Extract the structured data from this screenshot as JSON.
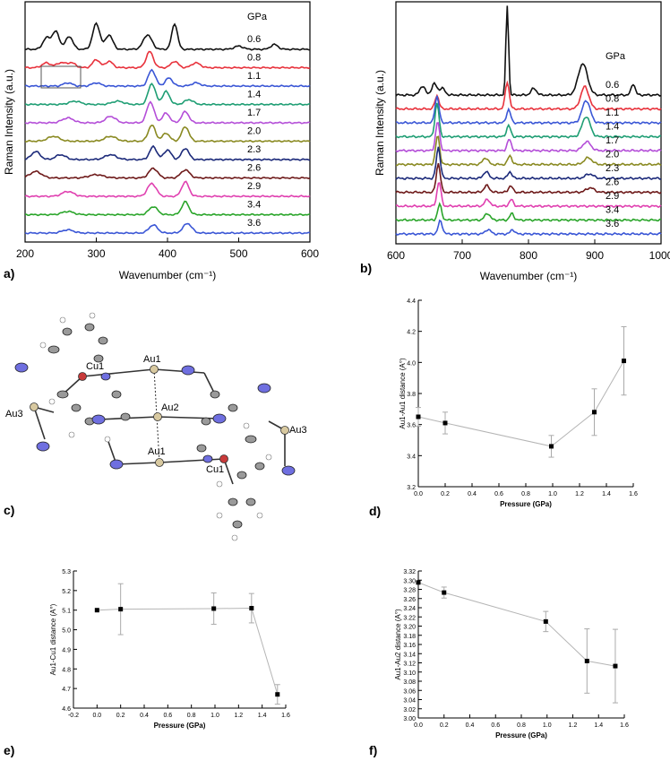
{
  "chart_data": [
    {
      "id": "a",
      "panel_label": "a)",
      "type": "line",
      "title": "",
      "xlabel": "Wavenumber (cm⁻¹)",
      "ylabel": "Raman Intensity (a.u.)",
      "xlim": [
        200,
        600
      ],
      "xticks": [
        "200",
        "300",
        "400",
        "500",
        "600"
      ],
      "legend_title": "GPa",
      "series": [
        {
          "name": "0.6",
          "color": "#111111",
          "peaks": [
            [
              230,
              0.7,
              5
            ],
            [
              243,
              1.1,
              5
            ],
            [
              262,
              0.8,
              5
            ],
            [
              300,
              1.6,
              5
            ],
            [
              318,
              0.9,
              5
            ],
            [
              372,
              0.9,
              6
            ],
            [
              410,
              1.6,
              4
            ],
            [
              500,
              0.2,
              6
            ],
            [
              550,
              0.3,
              5
            ]
          ]
        },
        {
          "name": "0.8",
          "color": "#e8323c",
          "peaks": [
            [
              230,
              0.3,
              6
            ],
            [
              250,
              0.3,
              6
            ],
            [
              265,
              0.3,
              6
            ],
            [
              300,
              0.5,
              5
            ],
            [
              318,
              0.4,
              5
            ],
            [
              375,
              1.0,
              5
            ],
            [
              410,
              0.4,
              5
            ],
            [
              440,
              0.3,
              6
            ]
          ]
        },
        {
          "name": "1.1",
          "color": "#3b57d6",
          "peaks": [
            [
              260,
              0.2,
              6
            ],
            [
              300,
              0.2,
              6
            ],
            [
              378,
              1.0,
              5
            ],
            [
              402,
              0.5,
              5
            ],
            [
              440,
              0.2,
              6
            ]
          ]
        },
        {
          "name": "1.4",
          "color": "#1f9e74",
          "peaks": [
            [
              270,
              0.2,
              8
            ],
            [
              330,
              0.2,
              8
            ],
            [
              378,
              1.3,
              5
            ],
            [
              398,
              0.8,
              5
            ],
            [
              430,
              0.3,
              6
            ]
          ]
        },
        {
          "name": "1.7",
          "color": "#b44ed8",
          "peaks": [
            [
              260,
              0.3,
              8
            ],
            [
              320,
              0.4,
              7
            ],
            [
              376,
              1.3,
              5
            ],
            [
              398,
              0.6,
              5
            ],
            [
              425,
              0.7,
              5
            ]
          ]
        },
        {
          "name": "2.0",
          "color": "#8a8a22",
          "peaks": [
            [
              240,
              0.3,
              8
            ],
            [
              320,
              0.3,
              8
            ],
            [
              378,
              1.0,
              5
            ],
            [
              398,
              0.5,
              5
            ],
            [
              425,
              0.9,
              5
            ]
          ]
        },
        {
          "name": "2.3",
          "color": "#1c2a7a",
          "peaks": [
            [
              215,
              0.5,
              6
            ],
            [
              250,
              0.3,
              7
            ],
            [
              320,
              0.3,
              8
            ],
            [
              380,
              0.8,
              5
            ],
            [
              400,
              0.6,
              5
            ],
            [
              425,
              0.7,
              5
            ]
          ]
        },
        {
          "name": "2.6",
          "color": "#6e1a1a",
          "peaks": [
            [
              215,
              0.4,
              8
            ],
            [
              300,
              0.2,
              10
            ],
            [
              380,
              0.6,
              6
            ],
            [
              425,
              0.5,
              6
            ]
          ]
        },
        {
          "name": "2.9",
          "color": "#e040b0",
          "peaks": [
            [
              260,
              0.3,
              8
            ],
            [
              378,
              0.8,
              6
            ],
            [
              425,
              0.9,
              5
            ]
          ]
        },
        {
          "name": "3.4",
          "color": "#2aa52a",
          "peaks": [
            [
              260,
              0.2,
              8
            ],
            [
              380,
              0.5,
              6
            ],
            [
              425,
              0.8,
              5
            ]
          ]
        },
        {
          "name": "3.6",
          "color": "#3b57d6",
          "peaks": [
            [
              260,
              0.2,
              8
            ],
            [
              380,
              0.5,
              6
            ],
            [
              428,
              0.6,
              6
            ]
          ]
        }
      ]
    },
    {
      "id": "b",
      "panel_label": "b)",
      "type": "line",
      "title": "",
      "xlabel": "Wavenumber (cm⁻¹)",
      "ylabel": "Raman Intensity (a.u.)",
      "xlim": [
        600,
        1000
      ],
      "xticks": [
        "600",
        "700",
        "800",
        "900",
        "1000"
      ],
      "legend_title": "GPa",
      "series": [
        {
          "name": "0.6",
          "color": "#111111",
          "peaks": [
            [
              640,
              0.4,
              4
            ],
            [
              658,
              0.5,
              4
            ],
            [
              670,
              0.3,
              4
            ],
            [
              768,
              4.0,
              2
            ],
            [
              808,
              0.3,
              4
            ],
            [
              882,
              1.4,
              7
            ],
            [
              958,
              0.5,
              3
            ]
          ]
        },
        {
          "name": "0.8",
          "color": "#e8323c",
          "peaks": [
            [
              662,
              0.6,
              3
            ],
            [
              768,
              1.2,
              3
            ],
            [
              885,
              1.0,
              6
            ]
          ]
        },
        {
          "name": "1.1",
          "color": "#3b57d6",
          "peaks": [
            [
              662,
              1.2,
              3
            ],
            [
              770,
              0.6,
              3
            ],
            [
              887,
              1.0,
              6
            ]
          ]
        },
        {
          "name": "1.4",
          "color": "#1f9e74",
          "peaks": [
            [
              662,
              1.5,
              3
            ],
            [
              770,
              0.5,
              3
            ],
            [
              887,
              0.9,
              6
            ]
          ]
        },
        {
          "name": "1.7",
          "color": "#b44ed8",
          "peaks": [
            [
              663,
              1.3,
              3
            ],
            [
              771,
              0.5,
              3
            ],
            [
              888,
              0.4,
              6
            ]
          ]
        },
        {
          "name": "2.0",
          "color": "#8a8a22",
          "peaks": [
            [
              663,
              1.3,
              3
            ],
            [
              735,
              0.3,
              4
            ],
            [
              772,
              0.4,
              3
            ],
            [
              890,
              0.3,
              6
            ]
          ]
        },
        {
          "name": "2.3",
          "color": "#1c2a7a",
          "peaks": [
            [
              664,
              1.4,
              3
            ],
            [
              736,
              0.3,
              4
            ],
            [
              772,
              0.3,
              3
            ],
            [
              892,
              0.2,
              6
            ]
          ]
        },
        {
          "name": "2.6",
          "color": "#6e1a1a",
          "peaks": [
            [
              664,
              1.3,
              3
            ],
            [
              737,
              0.3,
              4
            ],
            [
              773,
              0.3,
              3
            ],
            [
              893,
              0.2,
              6
            ]
          ]
        },
        {
          "name": "2.9",
          "color": "#e040b0",
          "peaks": [
            [
              665,
              1.1,
              3
            ],
            [
              738,
              0.3,
              4
            ],
            [
              774,
              0.3,
              3
            ]
          ]
        },
        {
          "name": "3.4",
          "color": "#2aa52a",
          "peaks": [
            [
              666,
              0.7,
              3
            ],
            [
              738,
              0.3,
              4
            ],
            [
              775,
              0.3,
              3
            ]
          ]
        },
        {
          "name": "3.6",
          "color": "#3b57d6",
          "peaks": [
            [
              667,
              0.6,
              3
            ],
            [
              739,
              0.2,
              4
            ],
            [
              776,
              0.2,
              3
            ]
          ]
        }
      ]
    },
    {
      "id": "d",
      "panel_label": "d)",
      "type": "scatter",
      "title": "",
      "xlabel": "Pressure (GPa)",
      "ylabel": "Au1-Au1 distance (A°)",
      "xlim": [
        0,
        1.6
      ],
      "ylim": [
        3.2,
        4.4
      ],
      "xticks": [
        "0.0",
        "0.2",
        "0.4",
        "0.6",
        "0.8",
        "1.0",
        "1.2",
        "1.4",
        "1.6"
      ],
      "yticks": [
        "3.2",
        "3.4",
        "3.6",
        "3.8",
        "4.0",
        "4.2",
        "4.4"
      ],
      "x": [
        0.0,
        0.2,
        0.99,
        1.31,
        1.53
      ],
      "y": [
        3.65,
        3.61,
        3.46,
        3.68,
        4.01
      ],
      "err": [
        0.06,
        0.07,
        0.07,
        0.15,
        0.22
      ]
    },
    {
      "id": "e",
      "panel_label": "e)",
      "type": "scatter",
      "title": "",
      "xlabel": "Pressure (GPa)",
      "ylabel": "Au1-Cu1 distance (A°)",
      "xlim": [
        -0.2,
        1.6
      ],
      "ylim": [
        4.6,
        5.3
      ],
      "xticks": [
        "-0.2",
        "0.0",
        "0.2",
        "0.4",
        "0.6",
        "0.8",
        "1.0",
        "1.2",
        "1.4",
        "1.6"
      ],
      "yticks": [
        "4.6",
        "4.7",
        "4.8",
        "4.9",
        "5.0",
        "5.1",
        "5.2",
        "5.3"
      ],
      "x": [
        0.0,
        0.2,
        0.99,
        1.31,
        1.53
      ],
      "y": [
        5.1,
        5.105,
        5.108,
        5.11,
        4.67
      ],
      "err": [
        0.0,
        0.13,
        0.08,
        0.075,
        0.05
      ]
    },
    {
      "id": "f",
      "panel_label": "f)",
      "type": "scatter",
      "title": "",
      "xlabel": "Pressure (GPa)",
      "ylabel": "Au1-Au2 distance (A°)",
      "xlim": [
        0,
        1.6
      ],
      "ylim": [
        3.0,
        3.32
      ],
      "xticks": [
        "0.0",
        "0.2",
        "0.4",
        "0.6",
        "0.8",
        "1.0",
        "1.2",
        "1.4",
        "1.6"
      ],
      "yticks": [
        "3.00",
        "3.02",
        "3.04",
        "3.06",
        "3.08",
        "3.10",
        "3.12",
        "3.14",
        "3.16",
        "3.18",
        "3.20",
        "3.22",
        "3.24",
        "3.26",
        "3.28",
        "3.30",
        "3.32"
      ],
      "x": [
        0.0,
        0.2,
        0.99,
        1.31,
        1.53
      ],
      "y": [
        3.295,
        3.273,
        3.21,
        3.124,
        3.113
      ],
      "err": [
        0.0,
        0.012,
        0.022,
        0.07,
        0.08
      ]
    }
  ],
  "structure": {
    "panel_label": "c)",
    "atom_labels": [
      {
        "id": "cu1-top",
        "text": "Cu1"
      },
      {
        "id": "au1-top",
        "text": "Au1"
      },
      {
        "id": "au2",
        "text": "Au2"
      },
      {
        "id": "au3-left",
        "text": "Au3"
      },
      {
        "id": "au3-right",
        "text": "Au3"
      },
      {
        "id": "au1-bottom",
        "text": "Au1"
      },
      {
        "id": "cu1-bottom",
        "text": "Cu1"
      }
    ]
  }
}
